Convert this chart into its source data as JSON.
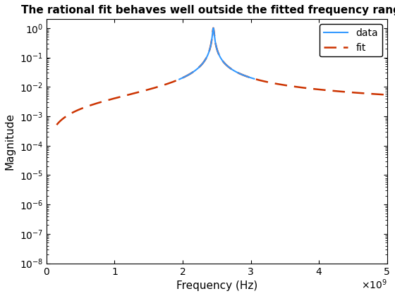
{
  "title": "The rational fit behaves well outside the fitted frequency range.",
  "xlabel": "Frequency (Hz)",
  "ylabel": "Magnitude",
  "xlim": [
    0,
    5000000000.0
  ],
  "ylim": [
    1e-08,
    2.0
  ],
  "resonance_freq": 2450000000.0,
  "resonance_q": 120,
  "data_color": "#3399FF",
  "fit_color": "#CC3300",
  "data_lw": 1.5,
  "fit_lw": 1.8,
  "fit_dash_on": 7,
  "fit_dash_off": 4,
  "data_freq_min": 1950000000.0,
  "data_freq_max": 3050000000.0,
  "full_freq_min": 150000000.0,
  "full_freq_max": 5000000000.0,
  "n_full": 8000,
  "n_data": 3000,
  "legend_loc": "upper right"
}
